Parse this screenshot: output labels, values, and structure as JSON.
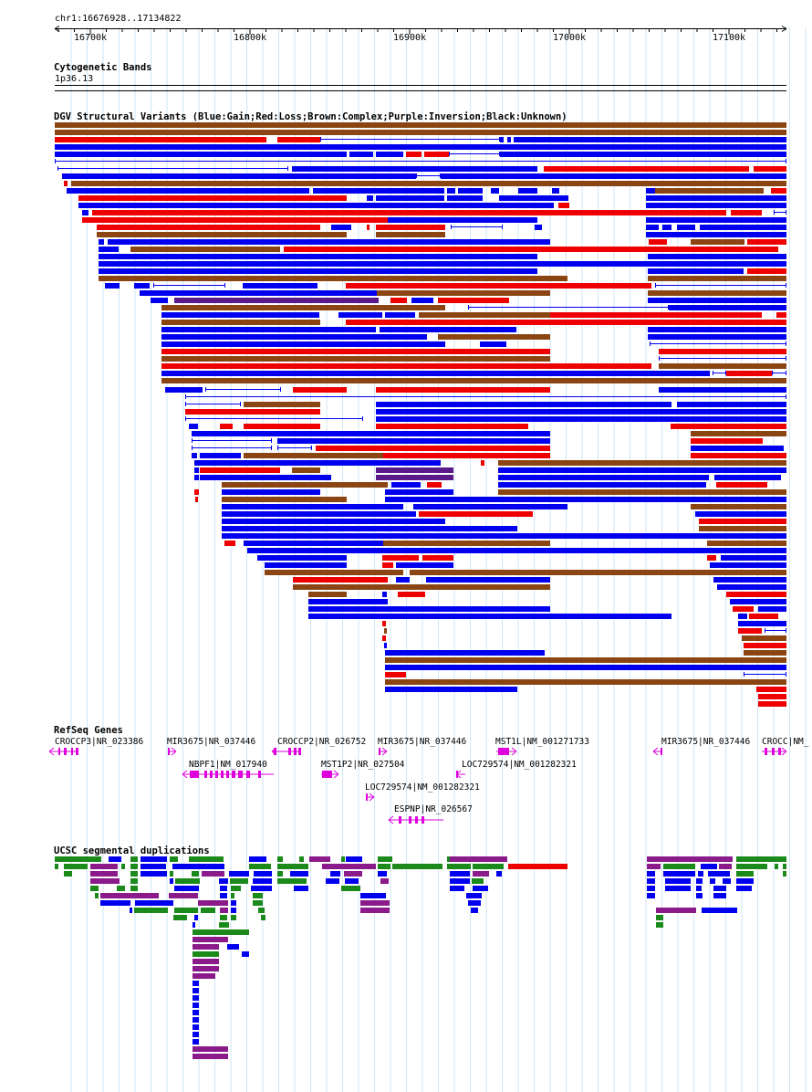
{
  "view": {
    "location": "chr1:16676928..17134822",
    "scale_ticks": [
      "16700k",
      "16800k",
      "16900k",
      "17000k",
      "17100k"
    ]
  },
  "tracks": {
    "cytoband": {
      "title": "Cytogenetic Bands",
      "band": "1p36.13"
    },
    "dgv": {
      "title": "DGV Structural Variants (Blue:Gain;Red:Loss;Brown:Complex;Purple:Inversion;Black:Unknown)",
      "colors": {
        "B": "#0000ee",
        "R": "#ee0000",
        "N": "#8b4513",
        "P": "#5a1a8a"
      }
    },
    "refseq": {
      "title": "RefSeq Genes",
      "color": "#dd00dd",
      "genes": [
        {
          "label": "CROCCP3|NR_023386"
        },
        {
          "label": "MIR3675|NR_037446"
        },
        {
          "label": "CROCCP2|NR_026752"
        },
        {
          "label": "MIR3675|NR_037446"
        },
        {
          "label": "MST1L|NM_001271733"
        },
        {
          "label": "MIR3675|NR_037446"
        },
        {
          "label": "CROCC|NM_"
        },
        {
          "label": "NBPF1|NM_017940"
        },
        {
          "label": "MST1P2|NR_027504"
        },
        {
          "label": "LOC729574|NM_001282321"
        },
        {
          "label": "LOC729574|NM_001282321"
        },
        {
          "label": "ESPNP|NR_026567"
        }
      ]
    },
    "segdups": {
      "title": "UCSC segmental duplications",
      "colors": {
        "G": "#1b8a1b",
        "B": "#0000ee",
        "P": "#8b1a8b",
        "R": "#ee0000"
      }
    }
  }
}
